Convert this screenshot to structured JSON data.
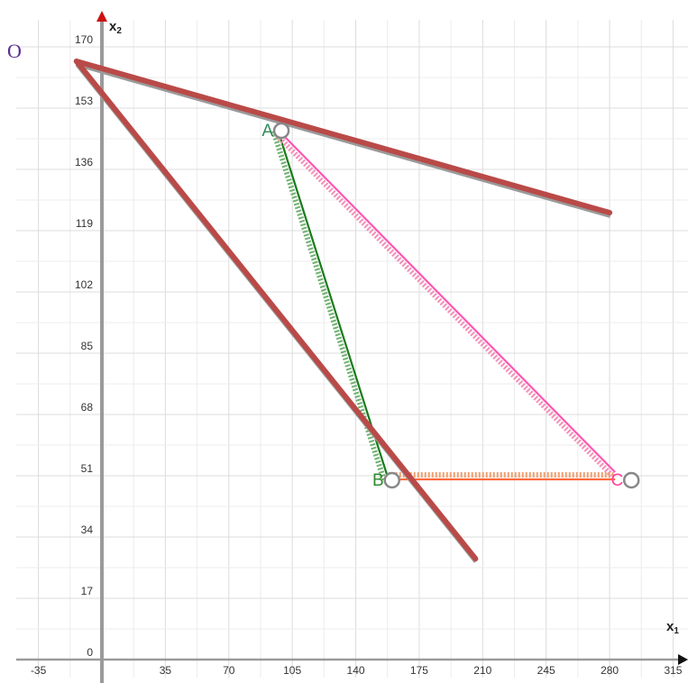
{
  "chart_data": {
    "type": "line",
    "x_axis": {
      "name": "x",
      "subscript": "1",
      "ticks": [
        -35,
        35,
        70,
        105,
        140,
        175,
        210,
        245,
        280,
        315
      ],
      "range": [
        -55,
        322
      ]
    },
    "y_axis": {
      "name": "x",
      "subscript": "2",
      "ticks": [
        0,
        17,
        34,
        51,
        68,
        85,
        102,
        119,
        136,
        153,
        170
      ],
      "range": [
        -5,
        170
      ]
    },
    "grid": true,
    "points": [
      {
        "label": "A",
        "x": 97,
        "y": 147,
        "color": "#2e8b57"
      },
      {
        "label": "B",
        "x": 158,
        "y": 50,
        "color": "#2e8b2e"
      },
      {
        "label": "C",
        "x": 290,
        "y": 50,
        "color": "#ff3fa0"
      }
    ],
    "origin_label": "O",
    "series": [
      {
        "color": "#1a7a1a",
        "dotted_color": "#6fb26f",
        "x": [
          97,
          158
        ],
        "y": [
          147,
          50
        ]
      },
      {
        "color": "#ff55b3",
        "dotted_color": "#f28fb8",
        "x": [
          97,
          283
        ],
        "y": [
          147,
          52
        ]
      },
      {
        "color": "#ff6a3d",
        "dotted_color": "#f0a070",
        "x": [
          158,
          283
        ],
        "y": [
          50,
          50
        ]
      },
      {
        "color": "#b94a48",
        "x": [
          -14,
          280
        ],
        "y": [
          166,
          124
        ]
      },
      {
        "color": "#b94a48",
        "x": [
          -14,
          206
        ],
        "y": [
          166,
          28
        ]
      }
    ]
  }
}
